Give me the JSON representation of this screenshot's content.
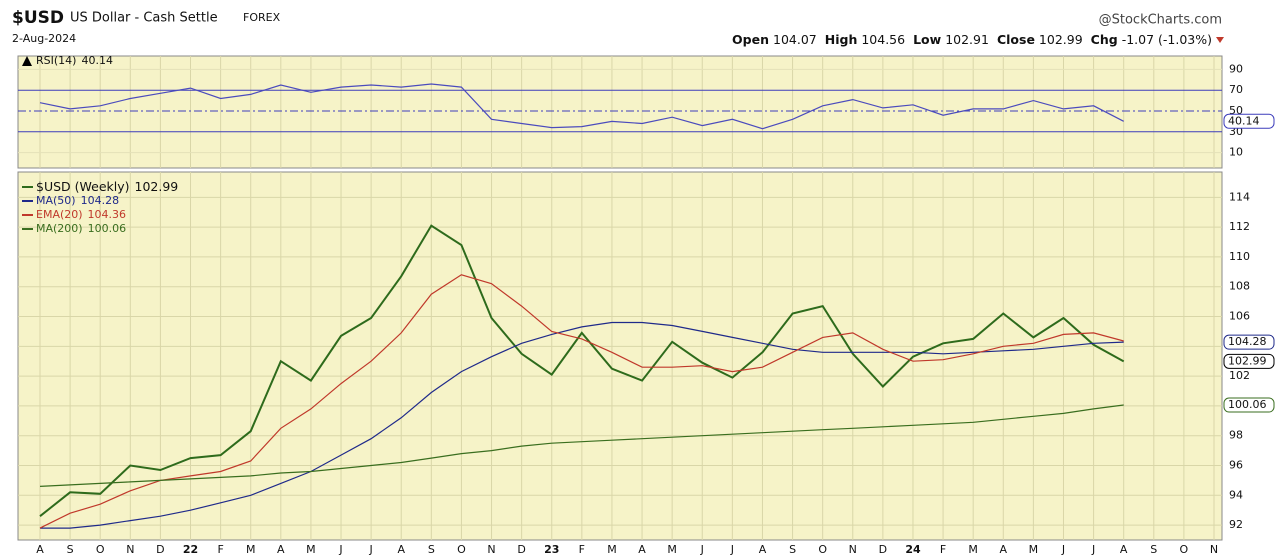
{
  "header": {
    "symbol": "$USD",
    "name": "US Dollar - Cash Settle",
    "exchange": "FOREX",
    "date": "2-Aug-2024",
    "brand": "@StockCharts.com",
    "quote": [
      {
        "label": "Open",
        "value": "104.07"
      },
      {
        "label": "High",
        "value": "104.56"
      },
      {
        "label": "Low",
        "value": "102.91"
      },
      {
        "label": "Close",
        "value": "102.99"
      },
      {
        "label": "Chg",
        "value": "-1.07 (-1.03%)"
      }
    ]
  },
  "chart_data": [
    {
      "type": "line",
      "ylim": [
        0,
        100
      ],
      "yticks": [
        10,
        30,
        50,
        70,
        90
      ],
      "series": [
        {
          "name": "RSI(14)",
          "color": "#4b4bbd",
          "values": [
            58,
            52,
            55,
            62,
            67,
            72,
            62,
            66,
            75,
            68,
            73,
            75,
            73,
            76,
            73,
            42,
            38,
            34,
            35,
            40,
            38,
            44,
            36,
            42,
            33,
            42,
            55,
            61,
            53,
            56,
            46,
            52,
            52,
            60,
            52,
            55,
            40.14,
            null,
            null,
            null
          ]
        }
      ]
    },
    {
      "type": "line",
      "categories": [
        "A",
        "S",
        "O",
        "N",
        "D",
        "22",
        "F",
        "M",
        "A",
        "M",
        "J",
        "J",
        "A",
        "S",
        "O",
        "N",
        "D",
        "23",
        "F",
        "M",
        "A",
        "M",
        "J",
        "J",
        "A",
        "S",
        "O",
        "N",
        "D",
        "24",
        "F",
        "M",
        "A",
        "M",
        "J",
        "J",
        "A",
        "S",
        "O",
        "N"
      ],
      "ylim": [
        91,
        115.7
      ],
      "yticks": [
        92,
        94,
        96,
        98,
        100,
        102,
        104,
        106,
        108,
        110,
        112,
        114
      ],
      "grid": true,
      "series": [
        {
          "name": "$USD (Weekly)",
          "color": "#2e6b1c",
          "values": [
            92.6,
            94.2,
            94.1,
            96.0,
            95.7,
            96.5,
            96.7,
            98.3,
            103.0,
            101.7,
            104.7,
            105.9,
            108.7,
            112.1,
            110.8,
            105.9,
            103.5,
            102.1,
            104.9,
            102.5,
            101.7,
            104.3,
            102.9,
            101.9,
            103.6,
            106.2,
            106.7,
            103.5,
            101.3,
            103.3,
            104.2,
            104.5,
            106.2,
            104.6,
            105.9,
            104.1,
            102.99,
            null,
            null,
            null
          ]
        },
        {
          "name": "MA(50)",
          "color": "#1f2a8a",
          "values": [
            91.8,
            91.8,
            92.0,
            92.3,
            92.6,
            93.0,
            93.5,
            94.0,
            94.8,
            95.6,
            96.7,
            97.8,
            99.2,
            100.9,
            102.3,
            103.3,
            104.2,
            104.8,
            105.3,
            105.6,
            105.6,
            105.4,
            105.0,
            104.6,
            104.2,
            103.8,
            103.6,
            103.6,
            103.6,
            103.6,
            103.5,
            103.6,
            103.7,
            103.8,
            104.0,
            104.2,
            104.28,
            null,
            null,
            null
          ]
        },
        {
          "name": "EMA(20)",
          "color": "#c0392b",
          "values": [
            91.8,
            92.8,
            93.4,
            94.3,
            95.0,
            95.3,
            95.6,
            96.3,
            98.5,
            99.8,
            101.5,
            103.0,
            104.9,
            107.5,
            108.8,
            108.2,
            106.7,
            105.0,
            104.5,
            103.6,
            102.6,
            102.6,
            102.7,
            102.3,
            102.6,
            103.6,
            104.6,
            104.9,
            103.8,
            103.0,
            103.1,
            103.5,
            104.0,
            104.2,
            104.8,
            104.9,
            104.36,
            null,
            null,
            null
          ]
        },
        {
          "name": "MA(200)",
          "color": "#3a6e1f",
          "values": [
            94.6,
            94.7,
            94.8,
            94.9,
            95.0,
            95.1,
            95.2,
            95.3,
            95.5,
            95.6,
            95.8,
            96.0,
            96.2,
            96.5,
            96.8,
            97.0,
            97.3,
            97.5,
            97.6,
            97.7,
            97.8,
            97.9,
            98.0,
            98.1,
            98.2,
            98.3,
            98.4,
            98.5,
            98.6,
            98.7,
            98.8,
            98.9,
            99.1,
            99.3,
            99.5,
            99.8,
            100.06,
            null,
            null,
            null
          ]
        }
      ]
    }
  ]
}
